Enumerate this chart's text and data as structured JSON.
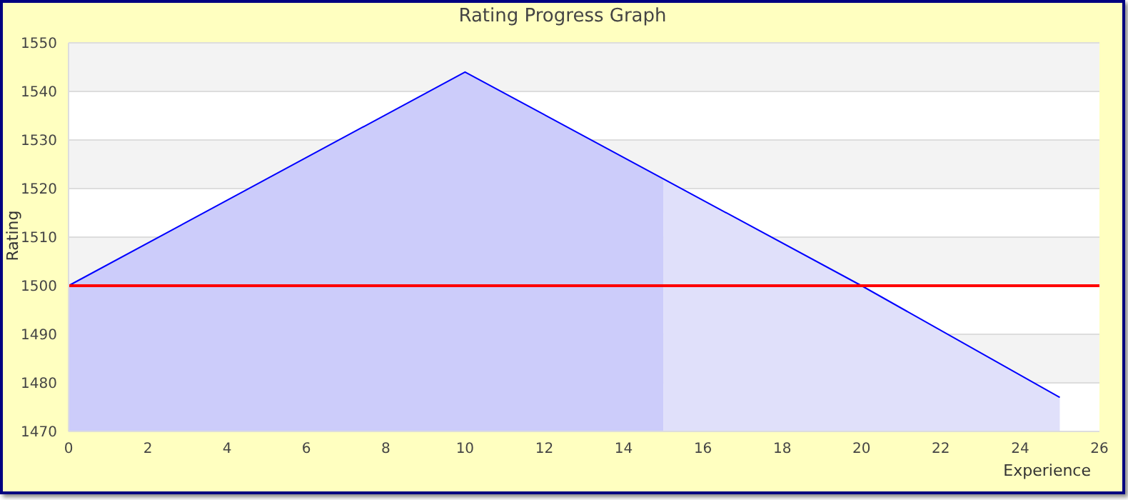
{
  "chart_data": {
    "type": "area",
    "title": "Rating Progress Graph",
    "xlabel": "Experience",
    "ylabel": "Rating",
    "series": [
      {
        "color": "#ccccfa",
        "x": [
          0,
          5,
          10,
          15
        ],
        "values": [
          1500,
          1522,
          1544,
          1522
        ]
      },
      {
        "color": "#e0e0fa",
        "x": [
          15,
          20,
          25
        ],
        "values": [
          1522,
          1500,
          1477
        ]
      },
      {
        "type": "line",
        "color": "#0000ff",
        "x": [
          0,
          5,
          10,
          15,
          20,
          25
        ],
        "values": [
          1500,
          1522,
          1544,
          1522,
          1500,
          1477
        ]
      }
    ],
    "xlim": [
      0,
      26
    ],
    "xticks": [
      0,
      2,
      4,
      6,
      8,
      10,
      12,
      14,
      16,
      18,
      20,
      22,
      24,
      26
    ],
    "ylim": [
      1470,
      1550
    ],
    "yticks": [
      1470,
      1480,
      1490,
      1500,
      1510,
      1520,
      1530,
      1540,
      1550
    ],
    "ref_lines": [
      {
        "axis": "y",
        "value": 1500,
        "color": "#ff0000"
      }
    ],
    "grid": "y",
    "marker": "none",
    "line_style": "solid"
  }
}
